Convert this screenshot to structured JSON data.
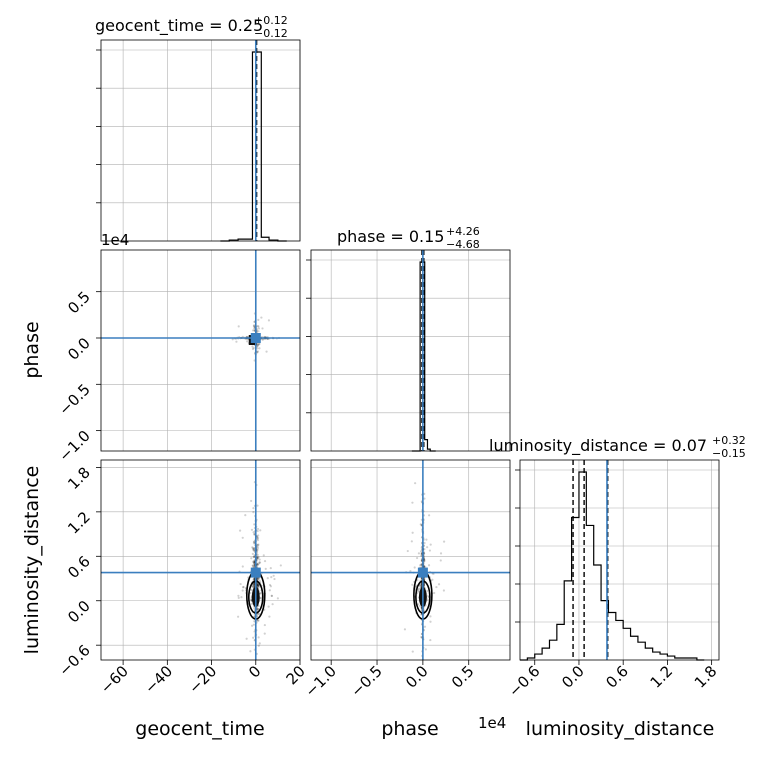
{
  "chart_data": {
    "type": "corner",
    "parameters": [
      "geocent_time",
      "phase",
      "luminosity_distance"
    ],
    "axis_labels": {
      "geocent_time": "geocent_time",
      "phase": "phase",
      "luminosity_distance": "luminosity_distance"
    },
    "scale_offsets": {
      "phase": "1e4",
      "luminosity_distance": "1e4"
    },
    "colors": {
      "truth": "#3b7fbf",
      "hist": "#000000",
      "grid": "#b0b0b0",
      "scatter": "#000000"
    },
    "grid": true,
    "ranges": {
      "geocent_time": [
        -70,
        20
      ],
      "phase": [
        -1.22,
        0.95
      ],
      "luminosity_distance": [
        -0.8,
        1.9
      ]
    },
    "ticks": {
      "geocent_time": {
        "values": [
          -60,
          -40,
          -20,
          0,
          20
        ],
        "labels": [
          "−60",
          "−40",
          "−20",
          "0",
          "20"
        ]
      },
      "phase": {
        "values": [
          -1.0,
          -0.5,
          0.0,
          0.5
        ],
        "labels": [
          "−1.0",
          "−0.5",
          "0.0",
          "0.5"
        ]
      },
      "phase_y": {
        "values": [
          0.5,
          0.0,
          -0.5,
          -1.0
        ],
        "labels": [
          "0.5",
          "0.0",
          "−0.5",
          "−1.0"
        ]
      },
      "luminosity_distance": {
        "values": [
          -0.6,
          0.0,
          0.6,
          1.2,
          1.8
        ],
        "labels": [
          "−0.6",
          "0.0",
          "0.6",
          "1.2",
          "1.8"
        ]
      },
      "luminosity_distance_y": {
        "values": [
          1.8,
          1.2,
          0.6,
          0.0,
          -0.6
        ],
        "labels": [
          "1.8",
          "1.2",
          "0.6",
          "0.0",
          "−0.6"
        ]
      }
    },
    "titles": {
      "geocent_time": {
        "text": "geocent_time = 0.25",
        "plus": "+0.12",
        "minus": "−0.12"
      },
      "phase": {
        "text": "phase = 0.15",
        "plus": "+4.26",
        "minus": "−4.68"
      },
      "luminosity_distance": {
        "text": "luminosity_distance = 0.07",
        "plus": "+0.32",
        "minus": "−0.15"
      }
    },
    "truths": {
      "geocent_time": 0.0,
      "phase": 0.0,
      "luminosity_distance": 0.38
    },
    "quantiles": {
      "geocent_time": [
        0.13,
        0.25,
        0.37
      ],
      "phase": [
        -0.01,
        0.0,
        0.01
      ],
      "luminosity_distance": [
        -0.08,
        0.07,
        0.39
      ]
    },
    "histograms": {
      "geocent_time": {
        "edges": [
          -16,
          -12,
          -8,
          -4,
          -1.5,
          2.5,
          6,
          10,
          14
        ],
        "counts": [
          0,
          0.005,
          0.01,
          0.01,
          1.0,
          0.02,
          0.005,
          0
        ]
      },
      "phase": {
        "edges": [
          -0.12,
          -0.09,
          -0.06,
          -0.03,
          0.0,
          0.02,
          0.05,
          0.08,
          0.11,
          0.14
        ],
        "counts": [
          0,
          0.0,
          0.0,
          1.0,
          1.0,
          0.06,
          0.01,
          0.0,
          0
        ]
      },
      "luminosity_distance": {
        "edges": [
          -0.8,
          -0.7,
          -0.6,
          -0.5,
          -0.4,
          -0.3,
          -0.2,
          -0.1,
          0.0,
          0.1,
          0.2,
          0.3,
          0.4,
          0.5,
          0.6,
          0.7,
          0.8,
          0.9,
          1.0,
          1.1,
          1.2,
          1.3,
          1.4,
          1.5,
          1.6,
          1.7
        ],
        "counts": [
          0.0,
          0.01,
          0.03,
          0.06,
          0.1,
          0.18,
          0.4,
          0.72,
          0.95,
          0.68,
          0.48,
          0.3,
          0.24,
          0.2,
          0.16,
          0.12,
          0.09,
          0.06,
          0.04,
          0.03,
          0.02,
          0.01,
          0.01,
          0.01,
          0.0
        ]
      }
    }
  }
}
